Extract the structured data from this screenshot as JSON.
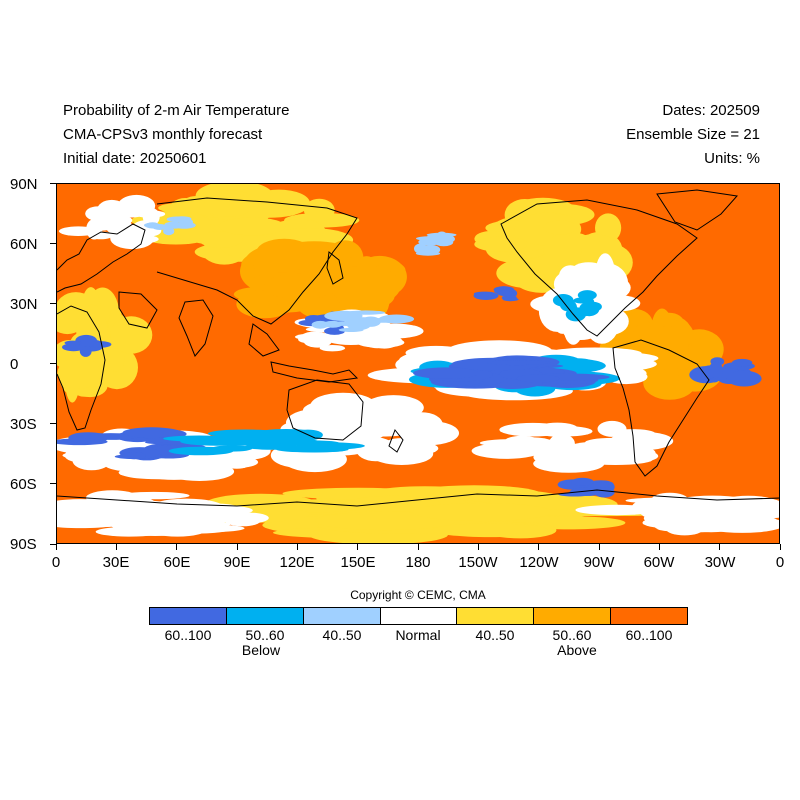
{
  "header": {
    "title": "Probability of 2-m Air Temperature",
    "subtitle": "CMA-CPSv3 monthly forecast",
    "initial_date": "Initial date: 20250601",
    "dates": "Dates: 202509",
    "ensemble": "Ensemble Size = 21",
    "units": "Units: %"
  },
  "axes": {
    "lat_labels": [
      "90N",
      "60N",
      "30N",
      "0",
      "30S",
      "60S",
      "90S"
    ],
    "lon_labels": [
      "0",
      "30E",
      "60E",
      "90E",
      "120E",
      "150E",
      "180",
      "150W",
      "120W",
      "90W",
      "60W",
      "30W",
      "0"
    ]
  },
  "copyright": "Copyright © CEMC, CMA",
  "legend": {
    "colors": [
      "#4169e1",
      "#00b0f0",
      "#a0d0ff",
      "#ffffff",
      "#ffde33",
      "#ffab00",
      "#ff6a00"
    ],
    "labels": [
      "60..100",
      "50..60",
      "40..50",
      "Normal",
      "40..50",
      "50..60",
      "60..100"
    ],
    "below_label": "Below",
    "above_label": "Above"
  },
  "map_colors": {
    "background": "#ff6a00",
    "coast": "#000000"
  }
}
